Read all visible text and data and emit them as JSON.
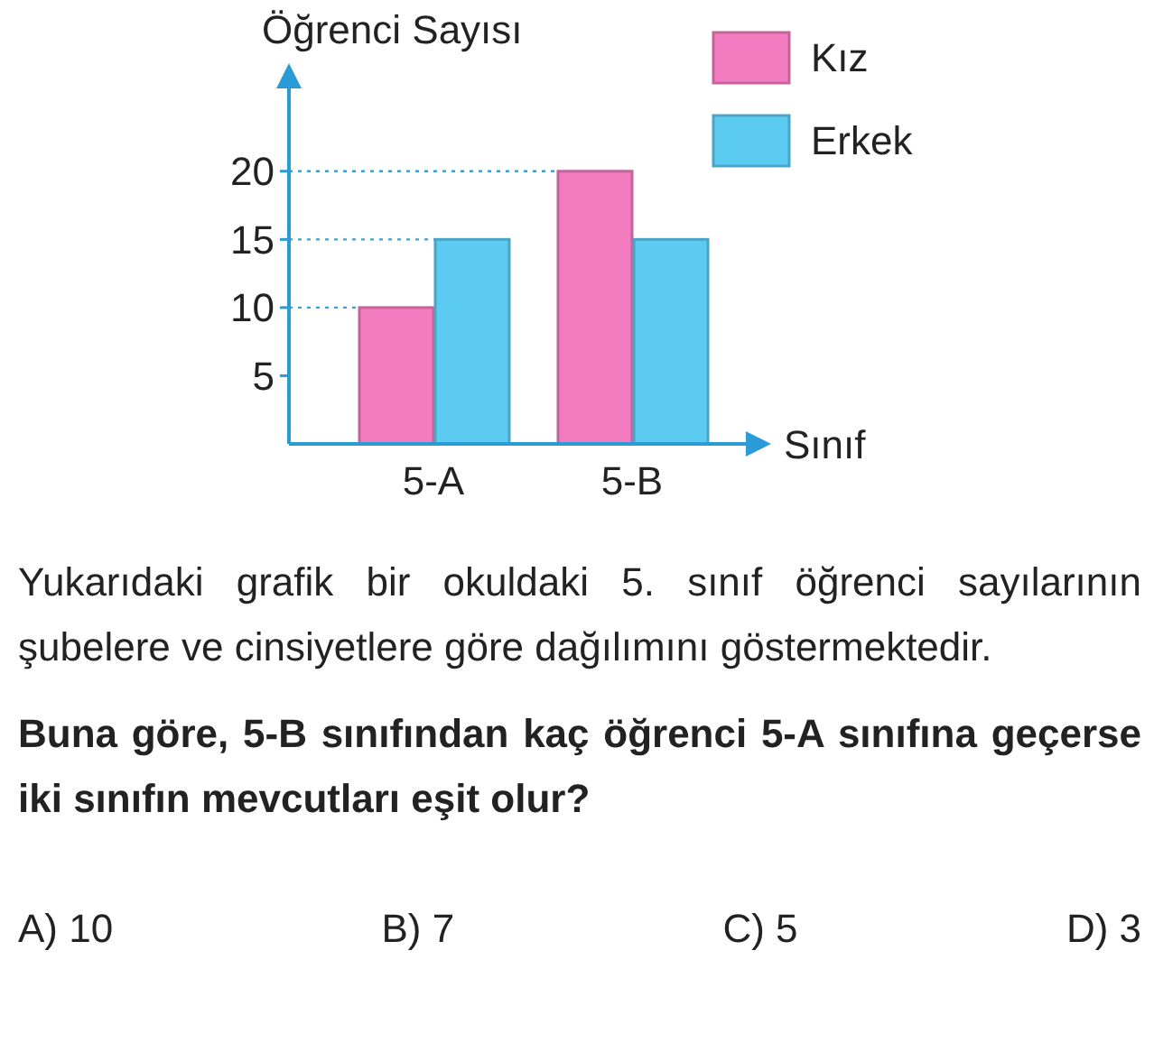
{
  "chart_data": {
    "type": "bar",
    "ylabel": "Öğrenci Sayısı",
    "xlabel": "Sınıf",
    "categories": [
      "5-A",
      "5-B"
    ],
    "series": [
      {
        "name": "Kız",
        "color": "#f27cbf",
        "values": [
          10,
          20
        ]
      },
      {
        "name": "Erkek",
        "color": "#5ccbf2",
        "values": [
          15,
          15
        ]
      }
    ],
    "ylim": [
      0,
      27
    ],
    "yticks": [
      5,
      10,
      15,
      20
    ],
    "legend": "top right",
    "ref_lines": [
      {
        "axis": "y",
        "value": 10,
        "color": "#3aa0d8",
        "line_style": "dotted"
      },
      {
        "axis": "y",
        "value": 15,
        "color": "#3aa0d8",
        "line_style": "dotted"
      },
      {
        "axis": "y",
        "value": 20,
        "color": "#3aa0d8",
        "line_style": "dotted"
      }
    ],
    "annotations": [
      "Yukarıdaki grafik bir okuldaki 5. sınıf öğrenci sayılarının şubelere ve cinsiyetlere göre dağılımını göstermektedir.",
      "Buna göre, 5-B sınıfından kaç öğrenci 5-A sınıfına geçerse iki sınıfın mevcutları eşit olur?",
      "A) 10",
      "B) 7",
      "C) 5",
      "D) 3"
    ]
  }
}
